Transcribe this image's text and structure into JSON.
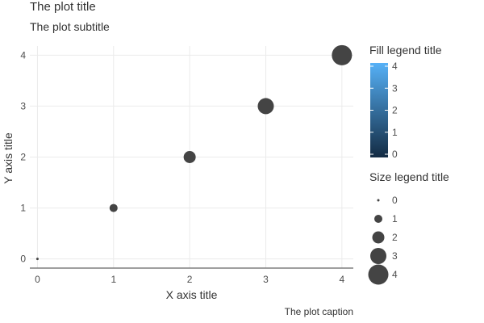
{
  "chart_data": {
    "type": "scatter",
    "title": "The plot title",
    "subtitle": "The plot subtitle",
    "caption": "The plot caption",
    "xlabel": "X axis title",
    "ylabel": "Y axis title",
    "xlim": [
      -0.1,
      4.15
    ],
    "ylim": [
      -0.18,
      4.18
    ],
    "xticks": [
      0,
      1,
      2,
      3,
      4
    ],
    "yticks": [
      0,
      1,
      2,
      3,
      4
    ],
    "grid": true,
    "point_color": "#444444",
    "points": [
      {
        "x": 0,
        "y": 0,
        "size": 0,
        "fill": 0
      },
      {
        "x": 1,
        "y": 1,
        "size": 1,
        "fill": 1
      },
      {
        "x": 2,
        "y": 2,
        "size": 2,
        "fill": 2
      },
      {
        "x": 3,
        "y": 3,
        "size": 3,
        "fill": 3
      },
      {
        "x": 4,
        "y": 4,
        "size": 4,
        "fill": 4
      }
    ],
    "fill_legend": {
      "title": "Fill legend title",
      "range": [
        0,
        4
      ],
      "ticks": [
        0,
        1,
        2,
        3,
        4
      ],
      "color_low": "#132B43",
      "color_high": "#56B1F7",
      "placement": "right"
    },
    "size_legend": {
      "title": "Size legend title",
      "values": [
        0,
        1,
        2,
        3,
        4
      ],
      "placement": "right"
    }
  }
}
